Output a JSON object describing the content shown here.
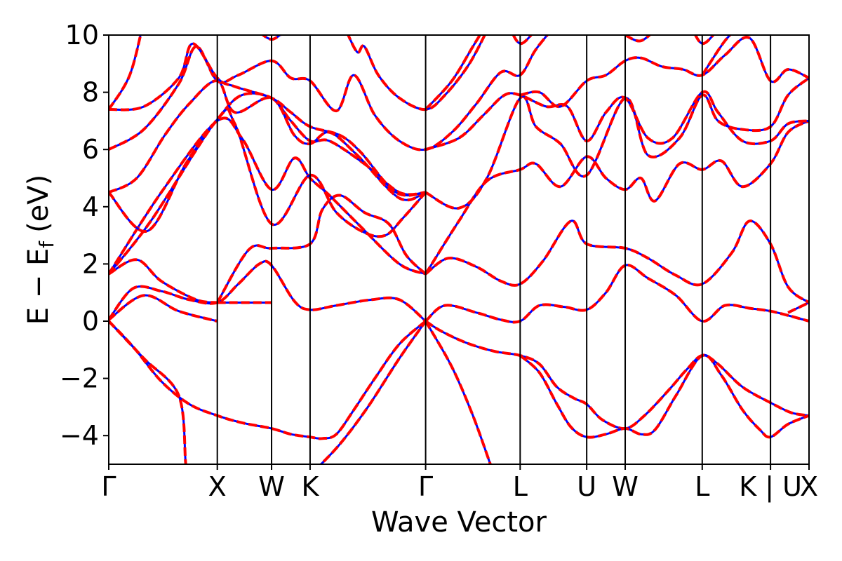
{
  "chart_data": {
    "type": "line",
    "title": "",
    "xlabel": "Wave Vector",
    "ylabel": "E − E",
    "ylabel_subscript": "f",
    "ylabel_unit": "(eV)",
    "ylim": [
      -5,
      10
    ],
    "yticks": [
      -4,
      -2,
      0,
      2,
      4,
      6,
      8,
      10
    ],
    "ytick_labels": [
      "−4",
      "−2",
      "0",
      "2",
      "4",
      "6",
      "8",
      "10"
    ],
    "x_range": [
      0,
      20
    ],
    "kpoints": [
      {
        "label": "Γ",
        "x": 0
      },
      {
        "label": "X",
        "x": 3.1
      },
      {
        "label": "W",
        "x": 4.65
      },
      {
        "label": "K",
        "x": 5.75
      },
      {
        "label": "Γ",
        "x": 9.05
      },
      {
        "label": "L",
        "x": 11.75
      },
      {
        "label": "U",
        "x": 13.65
      },
      {
        "label": "W",
        "x": 14.75
      },
      {
        "label": "L",
        "x": 16.95
      },
      {
        "label": "K | U",
        "x": 18.9
      },
      {
        "label": "X",
        "x": 20
      }
    ],
    "grid": false,
    "series_styles": [
      {
        "color": "#0000ff",
        "style": "solid",
        "width": 3
      },
      {
        "color": "#ff0000",
        "style": "dashed",
        "width": 4
      }
    ],
    "bands": [
      [
        [
          0,
          0
        ],
        [
          1,
          -1.3
        ],
        [
          2,
          -2.6
        ],
        [
          2.2,
          -5
        ],
        [
          2.3,
          -5.4
        ]
      ],
      [
        [
          0,
          0
        ],
        [
          0.7,
          -0.9
        ],
        [
          1.5,
          -2.1
        ],
        [
          2.3,
          -2.9
        ],
        [
          3.1,
          -3.3
        ],
        [
          3.8,
          -3.55
        ],
        [
          4.65,
          -3.75
        ],
        [
          5.2,
          -3.95
        ],
        [
          5.75,
          -4.05
        ],
        [
          6.1,
          -4.1
        ],
        [
          6.5,
          -3.95
        ],
        [
          7,
          -3.1
        ],
        [
          7.6,
          -2.0
        ],
        [
          8.3,
          -0.8
        ],
        [
          9.05,
          0
        ]
      ],
      [
        [
          5.9,
          -5.2
        ],
        [
          6.6,
          -4.3
        ],
        [
          7.4,
          -3.0
        ],
        [
          8.3,
          -1.3
        ],
        [
          9.05,
          0
        ]
      ],
      [
        [
          9.05,
          0
        ],
        [
          9.8,
          -1.6
        ],
        [
          10.4,
          -3.3
        ],
        [
          10.9,
          -5
        ],
        [
          11.0,
          -5.3
        ]
      ],
      [
        [
          9.05,
          0
        ],
        [
          9.5,
          -0.35
        ],
        [
          10.2,
          -0.75
        ],
        [
          11,
          -1.05
        ],
        [
          11.75,
          -1.2
        ],
        [
          12.3,
          -1.5
        ],
        [
          12.8,
          -2.3
        ],
        [
          13.3,
          -2.7
        ],
        [
          13.65,
          -2.9
        ],
        [
          14.1,
          -3.45
        ],
        [
          14.75,
          -3.75
        ],
        [
          15.3,
          -3.3
        ],
        [
          16,
          -2.4
        ],
        [
          16.5,
          -1.7
        ],
        [
          16.95,
          -1.2
        ],
        [
          17.4,
          -1.5
        ],
        [
          18.1,
          -2.3
        ],
        [
          18.9,
          -2.85
        ],
        [
          19.5,
          -3.2
        ],
        [
          20,
          -3.3
        ]
      ],
      [
        [
          11.75,
          -1.2
        ],
        [
          12.3,
          -1.8
        ],
        [
          12.8,
          -2.9
        ],
        [
          13.2,
          -3.7
        ],
        [
          13.65,
          -4.05
        ],
        [
          14.2,
          -3.95
        ],
        [
          14.75,
          -3.75
        ],
        [
          15.2,
          -3.95
        ],
        [
          15.6,
          -3.8
        ],
        [
          16.2,
          -2.6
        ],
        [
          16.95,
          -1.2
        ],
        [
          17.5,
          -1.9
        ],
        [
          18.1,
          -3.1
        ],
        [
          18.6,
          -3.8
        ],
        [
          18.9,
          -4.05
        ],
        [
          19.4,
          -3.6
        ],
        [
          20,
          -3.3
        ]
      ],
      [
        [
          0,
          0.05
        ],
        [
          0.7,
          1.15
        ],
        [
          1.5,
          1.05
        ],
        [
          2.3,
          0.75
        ],
        [
          3.1,
          0.65
        ],
        [
          3.7,
          1.3
        ],
        [
          4.3,
          2.0
        ],
        [
          4.65,
          1.95
        ],
        [
          5.3,
          0.7
        ],
        [
          5.75,
          0.4
        ],
        [
          6.5,
          0.55
        ],
        [
          7.5,
          0.75
        ],
        [
          8.3,
          0.75
        ],
        [
          9.05,
          0
        ]
      ],
      [
        [
          0,
          0.05
        ],
        [
          1,
          0.9
        ],
        [
          2,
          0.35
        ],
        [
          3.1,
          0
        ]
      ],
      [
        [
          9.05,
          0
        ],
        [
          9.6,
          0.55
        ],
        [
          10.5,
          0.3
        ],
        [
          11.2,
          0.05
        ],
        [
          11.75,
          0
        ],
        [
          12.3,
          0.55
        ],
        [
          13,
          0.5
        ],
        [
          13.65,
          0.4
        ],
        [
          14.2,
          1.0
        ],
        [
          14.75,
          1.95
        ],
        [
          15.4,
          1.5
        ],
        [
          16.2,
          0.9
        ],
        [
          16.95,
          0
        ],
        [
          17.6,
          0.55
        ],
        [
          18.3,
          0.45
        ],
        [
          18.9,
          0.35
        ],
        [
          19.4,
          0.2
        ],
        [
          20,
          0
        ]
      ],
      [
        [
          3.1,
          0.65
        ],
        [
          4.65,
          0.65
        ]
      ],
      [
        [
          19.4,
          0.3
        ],
        [
          20,
          0.65
        ]
      ],
      [
        [
          0,
          1.65
        ],
        [
          0.8,
          2.15
        ],
        [
          1.5,
          1.4
        ],
        [
          2.5,
          0.75
        ],
        [
          3.1,
          0.65
        ]
      ],
      [
        [
          0,
          1.65
        ],
        [
          1.5,
          4.5
        ],
        [
          3.1,
          7.0
        ],
        [
          3.8,
          6.4
        ],
        [
          4.65,
          4.6
        ],
        [
          5.3,
          5.7
        ],
        [
          5.75,
          5.0
        ],
        [
          6.3,
          4.4
        ],
        [
          7.2,
          3.3
        ],
        [
          8.3,
          2.0
        ],
        [
          9.05,
          1.65
        ]
      ],
      [
        [
          0,
          1.65
        ],
        [
          1.2,
          3.5
        ],
        [
          3.1,
          7.05
        ],
        [
          3.6,
          6.9
        ],
        [
          4.65,
          3.4
        ],
        [
          5.75,
          5.1
        ],
        [
          6.5,
          3.8
        ],
        [
          7.3,
          3.1
        ],
        [
          7.9,
          3.0
        ],
        [
          8.4,
          3.6
        ],
        [
          9.05,
          4.5
        ]
      ],
      [
        [
          3.1,
          0.65
        ],
        [
          4.0,
          2.5
        ],
        [
          4.65,
          2.55
        ],
        [
          5.75,
          2.7
        ],
        [
          6.1,
          3.9
        ],
        [
          6.6,
          4.4
        ],
        [
          7.3,
          3.8
        ],
        [
          8,
          3.4
        ],
        [
          8.5,
          2.3
        ],
        [
          9.05,
          1.65
        ]
      ],
      [
        [
          9.05,
          1.65
        ],
        [
          9.7,
          2.2
        ],
        [
          10.5,
          1.9
        ],
        [
          11.2,
          1.4
        ],
        [
          11.75,
          1.3
        ],
        [
          12.4,
          2.1
        ],
        [
          13.2,
          3.5
        ],
        [
          13.65,
          2.7
        ],
        [
          14.75,
          2.55
        ],
        [
          15.4,
          2.2
        ],
        [
          16.2,
          1.6
        ],
        [
          16.95,
          1.3
        ],
        [
          17.8,
          2.4
        ],
        [
          18.3,
          3.5
        ],
        [
          18.9,
          2.7
        ],
        [
          19.4,
          1.2
        ],
        [
          20,
          0.65
        ]
      ],
      [
        [
          9.05,
          1.65
        ],
        [
          10,
          3.5
        ],
        [
          10.8,
          4.9
        ],
        [
          11.75,
          5.3
        ],
        [
          12.2,
          5.5
        ],
        [
          12.9,
          4.7
        ],
        [
          13.65,
          5.75
        ],
        [
          14.2,
          5.0
        ],
        [
          14.75,
          4.6
        ],
        [
          15.2,
          5.0
        ],
        [
          15.6,
          4.2
        ],
        [
          16.3,
          5.5
        ],
        [
          16.95,
          5.3
        ],
        [
          17.5,
          5.6
        ],
        [
          18.1,
          4.7
        ],
        [
          18.9,
          5.5
        ],
        [
          19.4,
          6.6
        ],
        [
          20,
          7.0
        ]
      ],
      [
        [
          9.05,
          4.5
        ],
        [
          10,
          3.95
        ],
        [
          10.8,
          5.0
        ],
        [
          11.75,
          7.8
        ],
        [
          12.2,
          6.8
        ],
        [
          12.9,
          6.2
        ],
        [
          13.65,
          5.1
        ],
        [
          14.75,
          7.8
        ],
        [
          15.4,
          5.8
        ],
        [
          16.3,
          6.4
        ],
        [
          16.95,
          7.9
        ],
        [
          17.4,
          7.0
        ],
        [
          18.1,
          6.7
        ],
        [
          18.9,
          6.8
        ],
        [
          19.4,
          7.9
        ],
        [
          20,
          8.5
        ]
      ],
      [
        [
          0,
          4.5
        ],
        [
          1.1,
          3.15
        ],
        [
          2.2,
          5.5
        ],
        [
          3.1,
          7.05
        ],
        [
          3.8,
          7.9
        ],
        [
          4.65,
          7.8
        ],
        [
          5.2,
          7.0
        ],
        [
          5.75,
          6.3
        ],
        [
          6.3,
          6.3
        ],
        [
          7.3,
          5.5
        ],
        [
          8.3,
          4.5
        ],
        [
          9.05,
          4.5
        ]
      ],
      [
        [
          0,
          4.5
        ],
        [
          0.8,
          5.0
        ],
        [
          1.6,
          6.5
        ],
        [
          2.3,
          7.6
        ],
        [
          3.1,
          8.4
        ],
        [
          3.6,
          7.3
        ],
        [
          4.65,
          7.8
        ],
        [
          5.3,
          6.5
        ],
        [
          5.75,
          6.2
        ],
        [
          6.3,
          6.6
        ],
        [
          7.1,
          5.8
        ],
        [
          8.3,
          4.3
        ],
        [
          9.05,
          4.5
        ]
      ],
      [
        [
          0,
          6.0
        ],
        [
          1,
          6.7
        ],
        [
          2,
          8.3
        ],
        [
          2.5,
          9.6
        ],
        [
          3.1,
          8.4
        ],
        [
          3.7,
          8.6
        ],
        [
          4.65,
          9.1
        ],
        [
          5.2,
          8.5
        ],
        [
          5.75,
          8.4
        ],
        [
          6.5,
          7.35
        ],
        [
          7.0,
          8.6
        ],
        [
          7.6,
          7.2
        ],
        [
          8.3,
          6.3
        ],
        [
          9.05,
          6.0
        ],
        [
          9.8,
          6.6
        ],
        [
          10.5,
          7.6
        ],
        [
          11.2,
          8.7
        ],
        [
          11.75,
          8.6
        ],
        [
          12.2,
          9.5
        ],
        [
          12.8,
          10.4
        ]
      ],
      [
        [
          9.05,
          7.4
        ],
        [
          9.8,
          8.4
        ],
        [
          10.4,
          9.6
        ],
        [
          10.8,
          10.4
        ]
      ],
      [
        [
          9.05,
          6.0
        ],
        [
          10,
          6.4
        ],
        [
          10.7,
          7.2
        ],
        [
          11.3,
          7.9
        ],
        [
          11.75,
          7.9
        ],
        [
          12.5,
          7.5
        ],
        [
          13.1,
          7.5
        ],
        [
          13.65,
          6.3
        ],
        [
          14.2,
          7.3
        ],
        [
          14.75,
          7.8
        ],
        [
          15.4,
          6.4
        ],
        [
          16.1,
          6.4
        ],
        [
          16.95,
          8.0
        ],
        [
          17.4,
          7.3
        ],
        [
          18.1,
          6.3
        ],
        [
          18.9,
          6.3
        ],
        [
          19.4,
          6.9
        ],
        [
          20,
          7.0
        ]
      ],
      [
        [
          11.75,
          7.9
        ],
        [
          12.3,
          8.0
        ],
        [
          12.9,
          7.5
        ],
        [
          13.65,
          8.4
        ],
        [
          14.2,
          8.6
        ],
        [
          14.75,
          9.1
        ],
        [
          15.2,
          9.2
        ],
        [
          15.8,
          8.9
        ],
        [
          16.4,
          8.8
        ],
        [
          16.95,
          8.6
        ],
        [
          17.6,
          9.3
        ],
        [
          18.3,
          9.9
        ],
        [
          18.9,
          8.4
        ],
        [
          19.4,
          8.8
        ],
        [
          20,
          8.5
        ]
      ],
      [
        [
          0,
          7.4
        ],
        [
          1,
          7.5
        ],
        [
          2,
          8.5
        ],
        [
          2.4,
          9.7
        ],
        [
          3.1,
          8.5
        ],
        [
          3.6,
          8.2
        ],
        [
          4.65,
          7.8
        ],
        [
          5.2,
          7.3
        ],
        [
          5.75,
          6.8
        ],
        [
          6.6,
          6.5
        ],
        [
          7.2,
          5.9
        ],
        [
          8.2,
          4.5
        ],
        [
          9.05,
          4.5
        ]
      ],
      [
        [
          0,
          7.4
        ],
        [
          0.6,
          8.6
        ],
        [
          1,
          10.5
        ]
      ],
      [
        [
          4.3,
          10.1
        ],
        [
          4.65,
          9.85
        ],
        [
          5,
          10.1
        ]
      ],
      [
        [
          6.8,
          10.1
        ],
        [
          7.1,
          9.4
        ],
        [
          7.3,
          9.6
        ],
        [
          7.7,
          8.6
        ],
        [
          8.3,
          7.8
        ],
        [
          9.05,
          7.4
        ],
        [
          9.6,
          7.9
        ],
        [
          10.3,
          9.0
        ],
        [
          10.9,
          10.4
        ]
      ],
      [
        [
          11.4,
          10.4
        ],
        [
          11.75,
          9.7
        ],
        [
          12.2,
          10.2
        ]
      ],
      [
        [
          14.75,
          10.0
        ],
        [
          15.2,
          9.8
        ],
        [
          15.7,
          10.3
        ]
      ],
      [
        [
          16.6,
          10.4
        ],
        [
          16.95,
          9.7
        ],
        [
          17.4,
          10.2
        ]
      ],
      [
        [
          16.95,
          8.6
        ],
        [
          17.6,
          9.8
        ],
        [
          18.1,
          10.4
        ]
      ]
    ]
  }
}
